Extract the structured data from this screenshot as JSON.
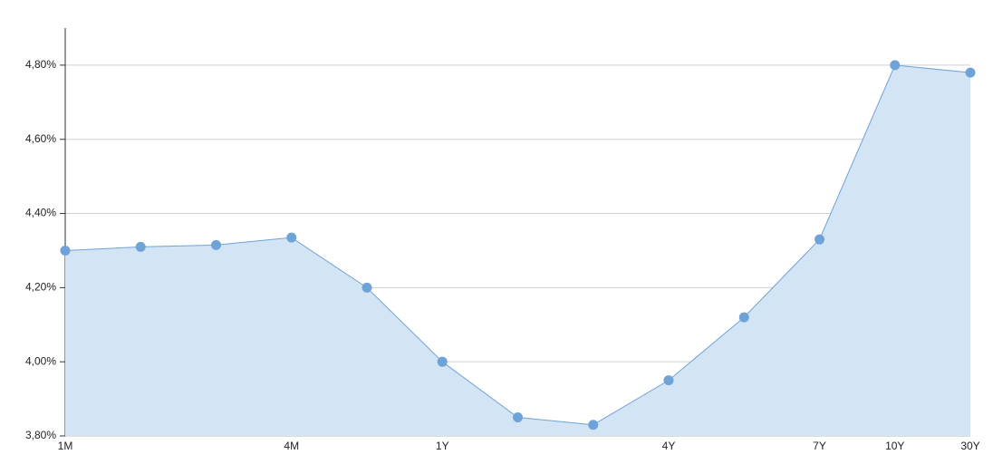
{
  "chart_data": {
    "type": "area",
    "categories": [
      "1M",
      null,
      null,
      "4M",
      null,
      "1Y",
      null,
      null,
      "4Y",
      null,
      "7Y",
      "10Y",
      "30Y"
    ],
    "values": [
      4.3,
      4.31,
      4.315,
      4.335,
      4.2,
      4.0,
      3.85,
      3.83,
      3.95,
      4.12,
      4.33,
      4.8,
      4.78
    ],
    "color": "#6fa3d8",
    "fill": "#d3e4f4",
    "ylim": [
      3.8,
      4.9
    ],
    "yticks": [
      {
        "value": 3.8,
        "label": "3,80%"
      },
      {
        "value": 4.0,
        "label": "4,00%"
      },
      {
        "value": 4.2,
        "label": "4,20%"
      },
      {
        "value": 4.4,
        "label": "4,40%"
      },
      {
        "value": 4.6,
        "label": "4,60%"
      },
      {
        "value": 4.8,
        "label": "4,80%"
      }
    ],
    "grid": true
  }
}
